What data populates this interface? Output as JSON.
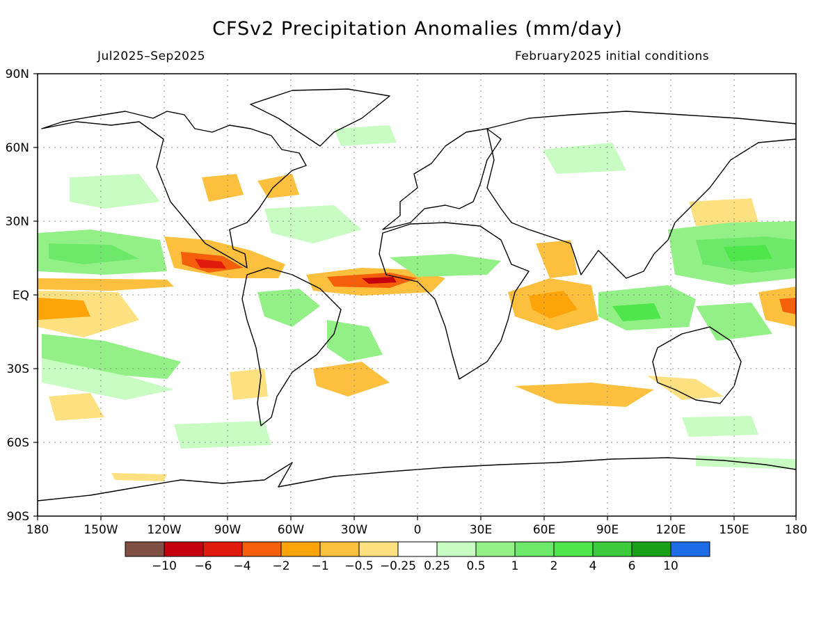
{
  "title": "CFSv2 Precipitation Anomalies (mm/day)",
  "period": "Jul2025–Sep2025",
  "initial_conditions": "February2025 initial conditions",
  "lat_labels": [
    "90N",
    "60N",
    "30N",
    "EQ",
    "30S",
    "60S",
    "90S"
  ],
  "lon_labels": [
    "180",
    "150W",
    "120W",
    "90W",
    "60W",
    "30W",
    "0",
    "30E",
    "60E",
    "90E",
    "120E",
    "150E",
    "180"
  ],
  "legend": {
    "colors": [
      "#7f5043",
      "#c4000f",
      "#e01a0c",
      "#f55f0a",
      "#fca40a",
      "#fdbf3e",
      "#fde080",
      "#ffffff",
      "#c9fcc3",
      "#93f087",
      "#6ee86a",
      "#4ee64a",
      "#3ccb3a",
      "#18a018",
      "#1c6ce8"
    ],
    "labels": [
      "−10",
      "−6",
      "−4",
      "−2",
      "−1",
      "−0.5",
      "−0.25",
      "0.25",
      "0.5",
      "1",
      "2",
      "4",
      "6",
      "10"
    ]
  }
}
